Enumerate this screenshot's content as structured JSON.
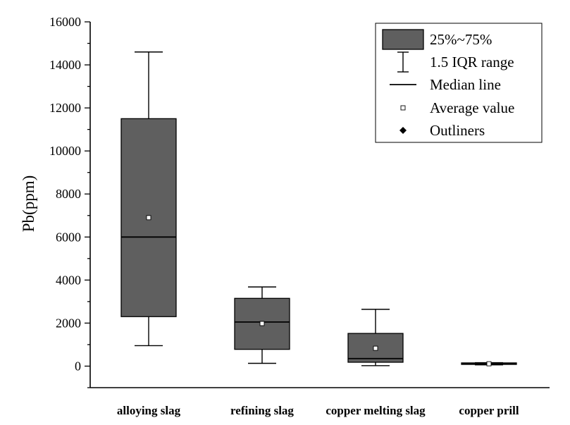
{
  "chart_data": {
    "type": "box",
    "ylabel": "Pb(ppm)",
    "ylim": [
      -1000,
      16000
    ],
    "yticks": [
      0,
      2000,
      4000,
      6000,
      8000,
      10000,
      12000,
      14000,
      16000
    ],
    "grid": false,
    "legend_position": "top-right",
    "categories": [
      "alloying slag",
      "refining slag",
      "copper melting slag",
      "copper prill"
    ],
    "boxes": [
      {
        "category": "alloying slag",
        "whisker_low": 950,
        "q1": 2300,
        "median": 6000,
        "q3": 11500,
        "whisker_high": 14600,
        "mean": 6900
      },
      {
        "category": "refining slag",
        "whisker_low": 130,
        "q1": 780,
        "median": 2050,
        "q3": 3150,
        "whisker_high": 3680,
        "mean": 1980
      },
      {
        "category": "copper melting slag",
        "whisker_low": 20,
        "q1": 180,
        "median": 350,
        "q3": 1520,
        "whisker_high": 2640,
        "mean": 830
      },
      {
        "category": "copper prill",
        "whisker_low": 60,
        "q1": 80,
        "median": 110,
        "q3": 150,
        "whisker_high": 160,
        "mean": 110
      }
    ],
    "legend": [
      {
        "label": "25%~75%",
        "symbol": "box"
      },
      {
        "label": "1.5 IQR range",
        "symbol": "whisker"
      },
      {
        "label": "Median line",
        "symbol": "line"
      },
      {
        "label": "Average value",
        "symbol": "square"
      },
      {
        "label": "Outliners",
        "symbol": "diamond"
      }
    ],
    "colors": {
      "box_fill": "#5f5f5f",
      "stroke": "#000000"
    }
  }
}
